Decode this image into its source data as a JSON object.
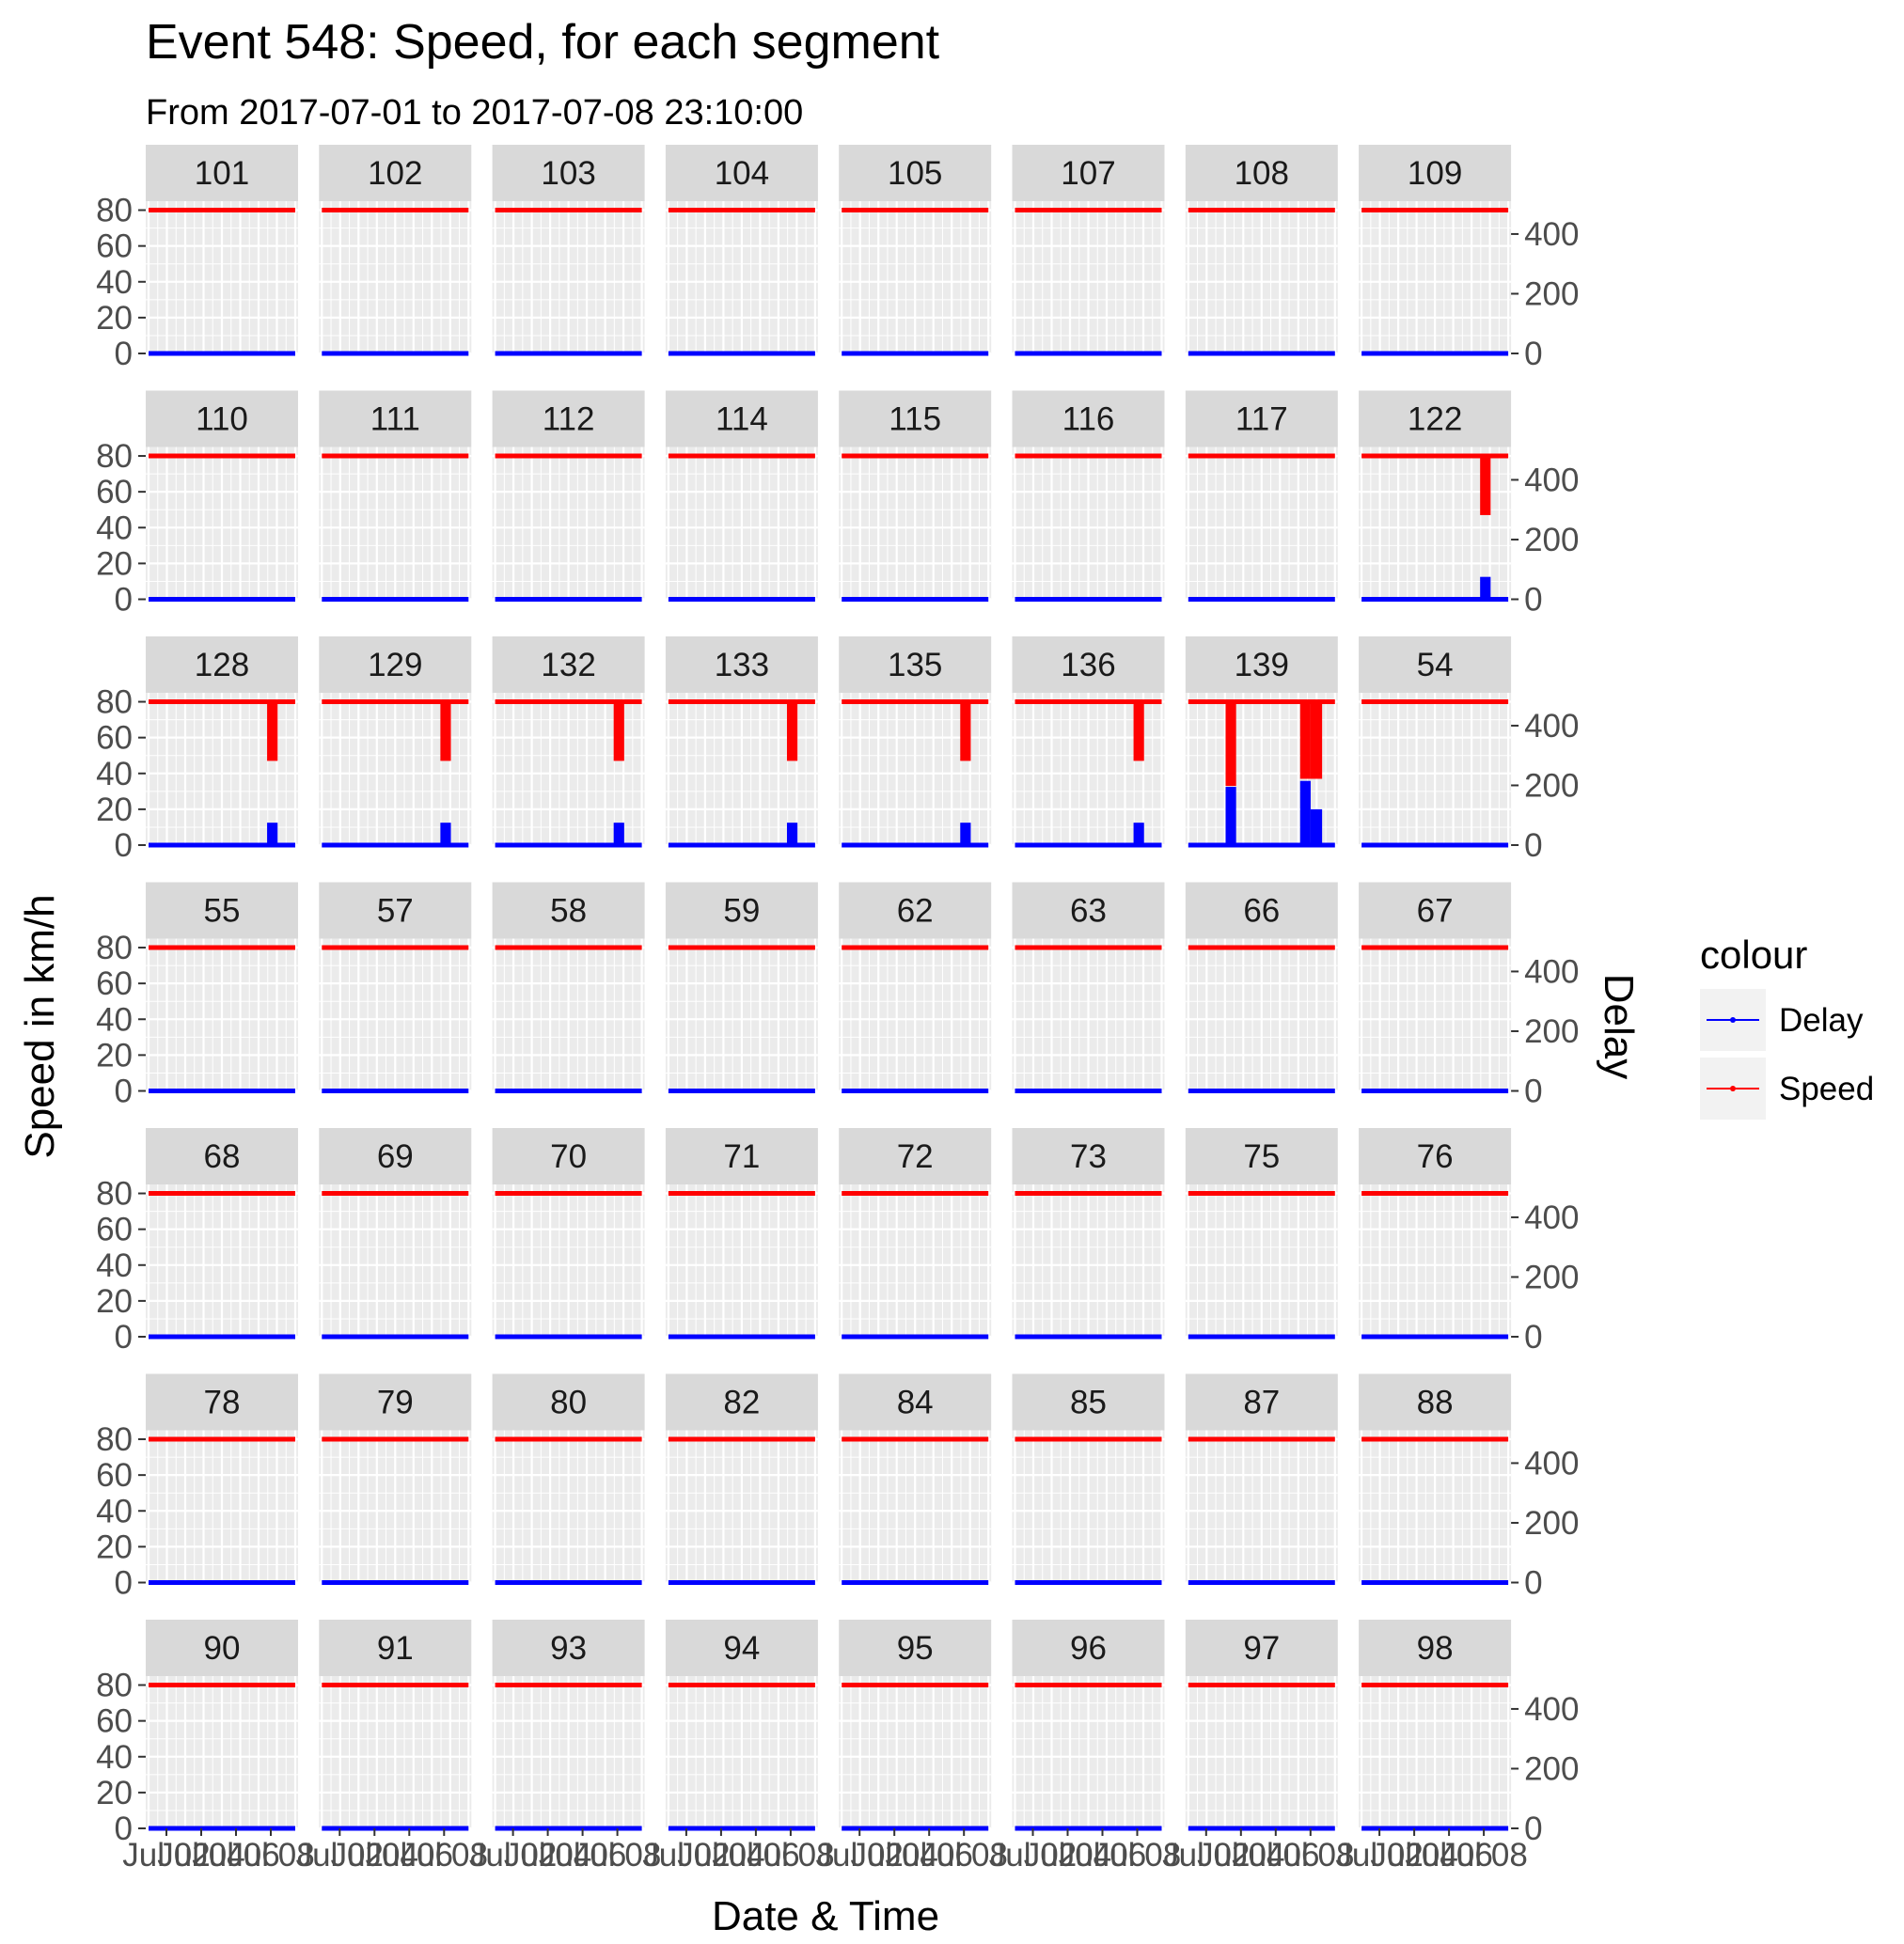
{
  "chart_data": {
    "type": "line",
    "title": "Event 548: Speed, for each segment",
    "subtitle": "From 2017-07-01 to 2017-07-08 23:10:00",
    "xlabel": "Date & Time",
    "ylabel": "Speed in km/h",
    "y2label": "Delay",
    "x_ticks": [
      "Jul 02",
      "Jul 04",
      "Jul 06",
      "Jul 08"
    ],
    "x_range": [
      "2017-07-01",
      "2017-07-08 23:10:00"
    ],
    "ylim": [
      0,
      85
    ],
    "y_ticks": [
      0,
      20,
      40,
      60,
      80
    ],
    "y2lim": [
      0,
      510
    ],
    "y2_ticks": [
      0,
      200,
      400
    ],
    "grid": true,
    "legend": {
      "title": "colour",
      "position": "right",
      "entries": [
        {
          "label": "Delay",
          "color": "#0000ff"
        },
        {
          "label": "Speed",
          "color": "#ff0000"
        }
      ]
    },
    "colors": {
      "speed": "#ff0000",
      "delay": "#0000ff",
      "panel": "#ebebeb",
      "strip": "#d9d9d9"
    },
    "segments": [
      {
        "id": "101"
      },
      {
        "id": "102"
      },
      {
        "id": "103"
      },
      {
        "id": "104"
      },
      {
        "id": "105"
      },
      {
        "id": "107"
      },
      {
        "id": "108"
      },
      {
        "id": "109"
      },
      {
        "id": "110"
      },
      {
        "id": "111"
      },
      {
        "id": "112"
      },
      {
        "id": "114"
      },
      {
        "id": "115"
      },
      {
        "id": "116"
      },
      {
        "id": "117"
      },
      {
        "id": "122",
        "events": [
          {
            "start": 6.35,
            "end": 6.9,
            "speed_min": 47,
            "delay_max": 75
          }
        ]
      },
      {
        "id": "128",
        "events": [
          {
            "start": 6.35,
            "end": 6.9,
            "speed_min": 47,
            "delay_max": 75
          }
        ]
      },
      {
        "id": "129",
        "events": [
          {
            "start": 6.35,
            "end": 6.9,
            "speed_min": 47,
            "delay_max": 75
          }
        ]
      },
      {
        "id": "132",
        "events": [
          {
            "start": 6.35,
            "end": 6.9,
            "speed_min": 47,
            "delay_max": 75
          }
        ]
      },
      {
        "id": "133",
        "events": [
          {
            "start": 6.35,
            "end": 6.9,
            "speed_min": 47,
            "delay_max": 75
          }
        ]
      },
      {
        "id": "135",
        "events": [
          {
            "start": 6.35,
            "end": 6.9,
            "speed_min": 47,
            "delay_max": 75
          }
        ]
      },
      {
        "id": "136",
        "events": [
          {
            "start": 6.35,
            "end": 6.9,
            "speed_min": 47,
            "delay_max": 75
          }
        ]
      },
      {
        "id": "139",
        "events": [
          {
            "start": 2.1,
            "end": 2.65,
            "speed_min": 33,
            "delay_max": 195
          },
          {
            "start": 6.0,
            "end": 6.55,
            "speed_min": 37,
            "delay_max": 215
          },
          {
            "start": 6.55,
            "end": 7.15,
            "speed_min": 37,
            "delay_max": 120
          }
        ]
      },
      {
        "id": "54"
      },
      {
        "id": "55"
      },
      {
        "id": "57"
      },
      {
        "id": "58"
      },
      {
        "id": "59"
      },
      {
        "id": "62"
      },
      {
        "id": "63"
      },
      {
        "id": "66"
      },
      {
        "id": "67"
      },
      {
        "id": "68"
      },
      {
        "id": "69"
      },
      {
        "id": "70"
      },
      {
        "id": "71"
      },
      {
        "id": "72"
      },
      {
        "id": "73"
      },
      {
        "id": "75"
      },
      {
        "id": "76"
      },
      {
        "id": "78"
      },
      {
        "id": "79"
      },
      {
        "id": "80"
      },
      {
        "id": "82"
      },
      {
        "id": "84"
      },
      {
        "id": "85"
      },
      {
        "id": "87"
      },
      {
        "id": "88"
      },
      {
        "id": "90"
      },
      {
        "id": "91"
      },
      {
        "id": "93"
      },
      {
        "id": "94"
      },
      {
        "id": "95"
      },
      {
        "id": "96"
      },
      {
        "id": "97"
      },
      {
        "id": "98"
      }
    ],
    "baseline": {
      "speed": 80,
      "delay": 0
    }
  }
}
